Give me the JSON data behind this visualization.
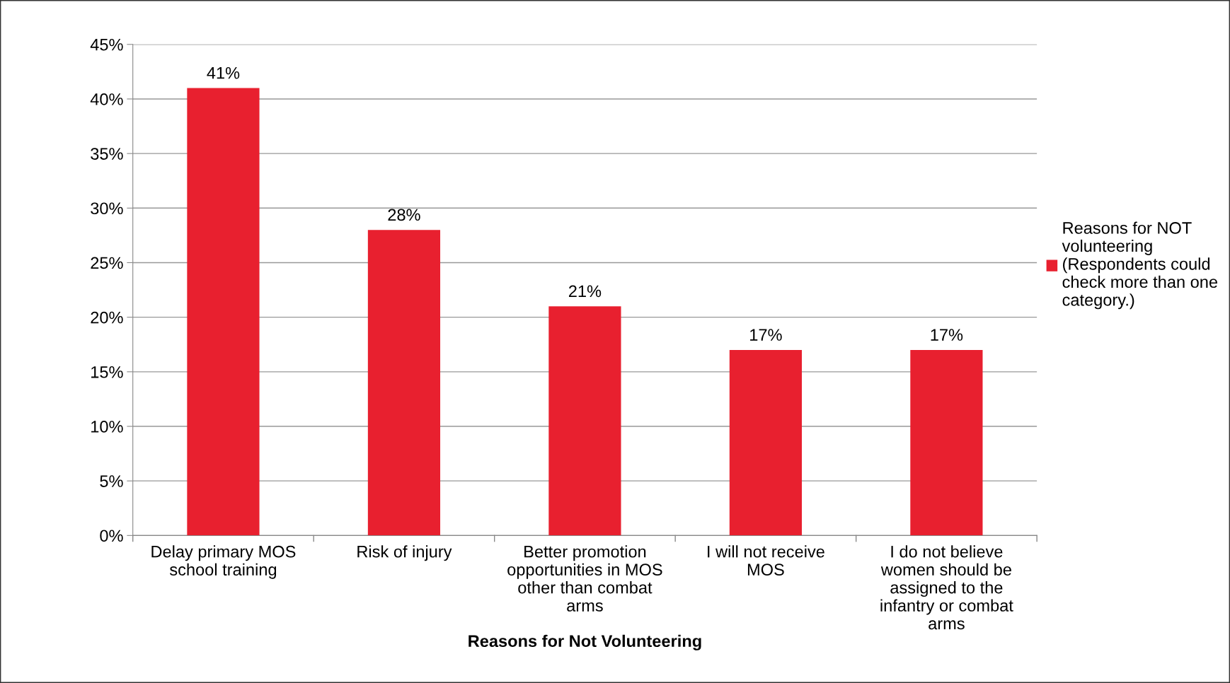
{
  "chart_data": {
    "type": "bar",
    "xlabel": "Reasons for Not Volunteering",
    "categories": [
      "Delay primary MOS\nschool training",
      "Risk of injury",
      "Better promotion\nopportunities in MOS\nother than combat\narms",
      "I will not receive\nMOS",
      "I do not believe\nwomen should be\nassigned to the\ninfantry or combat\narms"
    ],
    "series": [
      {
        "name": "Reasons for NOT\nvolunteering\n(Respondents could\ncheck more than one\ncategory.)",
        "color": "#e8202f",
        "values": [
          41,
          28,
          21,
          17,
          17
        ],
        "value_labels": [
          "41%",
          "28%",
          "21%",
          "17%",
          "17%"
        ]
      }
    ],
    "ylim": [
      0,
      45
    ],
    "yticks": [
      {
        "value": 0,
        "label": "0%"
      },
      {
        "value": 5,
        "label": "5%"
      },
      {
        "value": 10,
        "label": "10%"
      },
      {
        "value": 15,
        "label": "15%"
      },
      {
        "value": 20,
        "label": "20%"
      },
      {
        "value": 25,
        "label": "25%"
      },
      {
        "value": 30,
        "label": "30%"
      },
      {
        "value": 35,
        "label": "35%"
      },
      {
        "value": 40,
        "label": "40%"
      },
      {
        "value": 45,
        "label": "45%"
      }
    ],
    "grid": "y",
    "legend": "right"
  }
}
